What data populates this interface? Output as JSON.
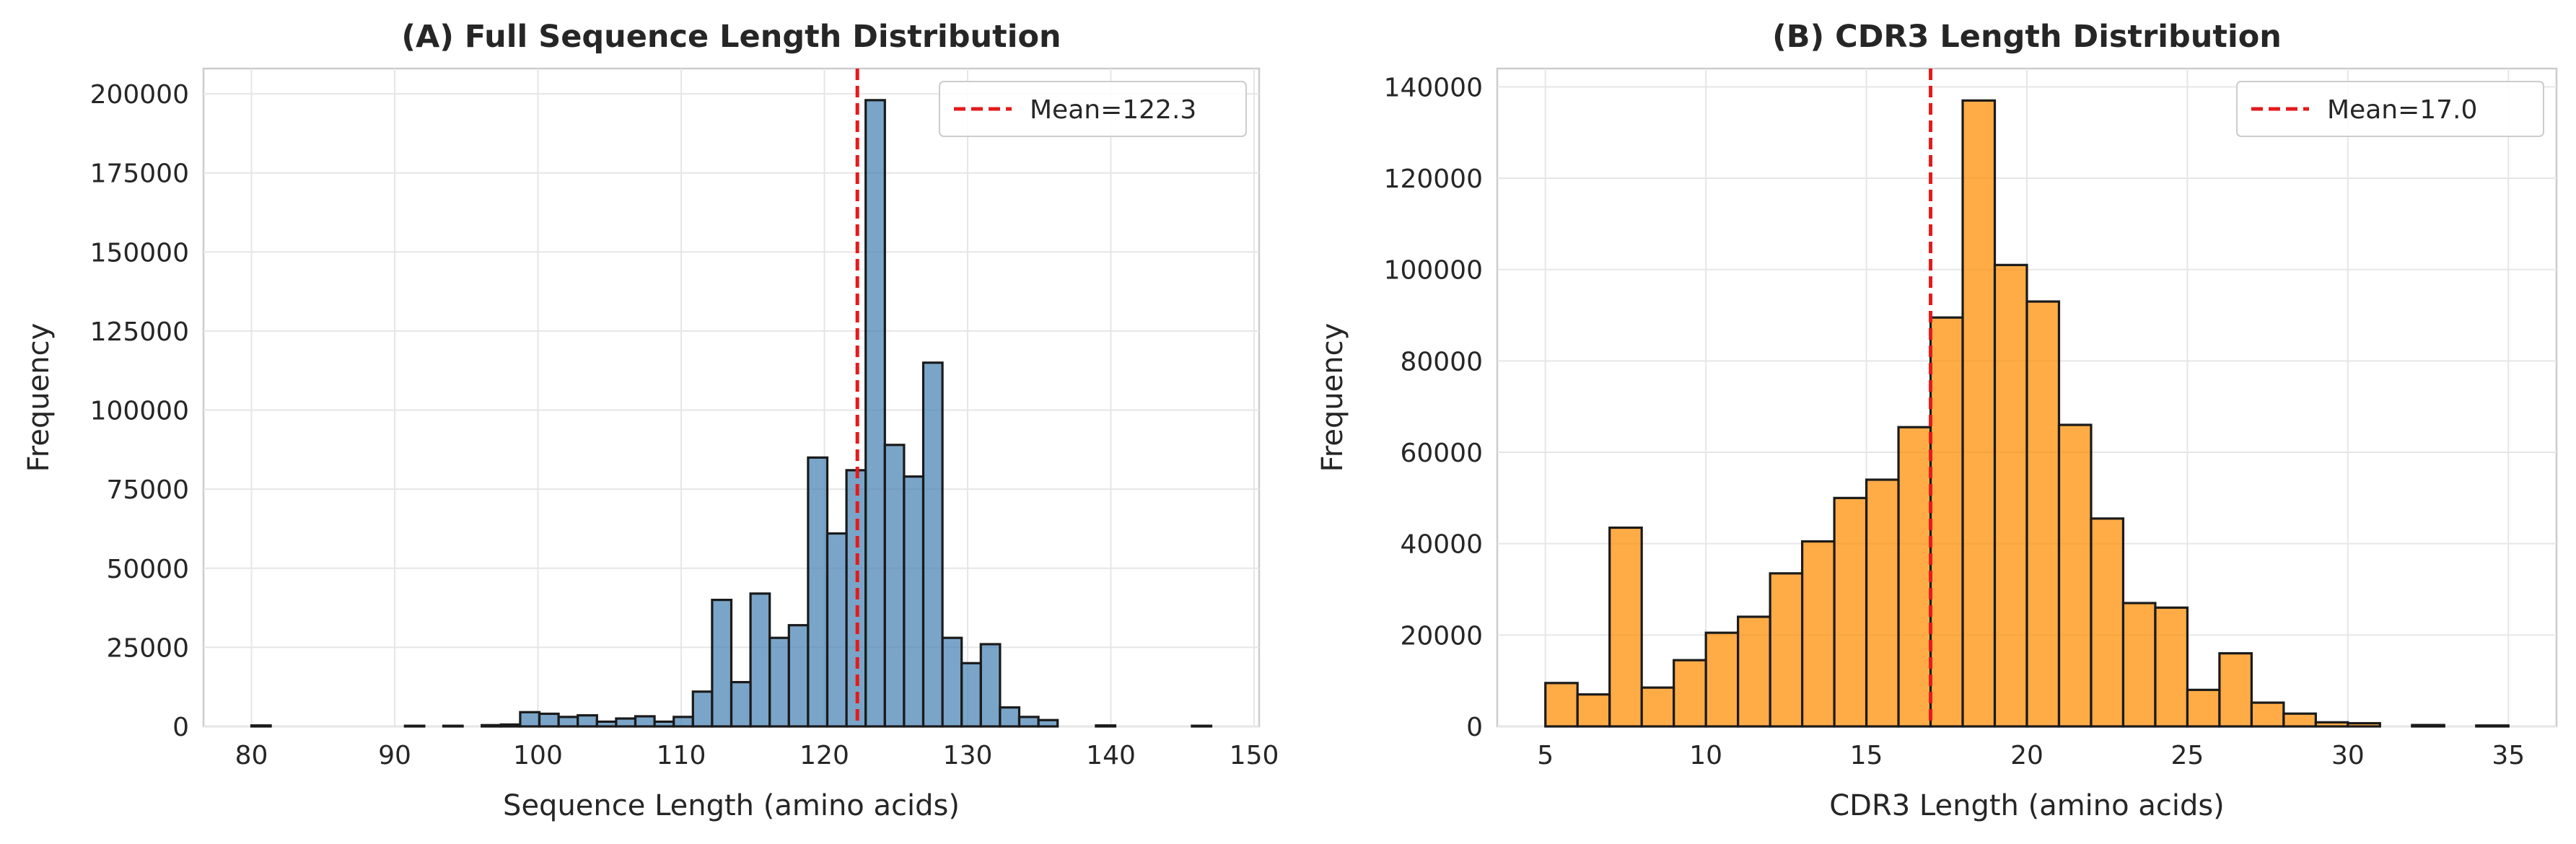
{
  "chart_data": [
    {
      "type": "bar",
      "title": "(A) Full Sequence Length Distribution",
      "xlabel": "Sequence Length (amino acids)",
      "ylabel": "Frequency",
      "xlim": [
        76.65,
        150.35
      ],
      "ylim": [
        0,
        208000
      ],
      "xticks": [
        80,
        90,
        100,
        110,
        120,
        130,
        140,
        150
      ],
      "yticks": [
        0,
        25000,
        50000,
        75000,
        100000,
        125000,
        150000,
        175000,
        200000
      ],
      "grid": true,
      "bar_color": "#4682B4",
      "bin_start": 80,
      "bin_width": 1.34,
      "values": [
        300,
        0,
        0,
        0,
        0,
        0,
        0,
        0,
        200,
        0,
        200,
        0,
        400,
        600,
        4500,
        4000,
        3000,
        3500,
        1500,
        2500,
        3200,
        1500,
        3000,
        11000,
        40000,
        14000,
        42000,
        28000,
        32000,
        85000,
        61000,
        81000,
        198000,
        89000,
        79000,
        115000,
        28000,
        20000,
        26000,
        6000,
        3000,
        2000,
        0,
        0,
        300,
        0,
        0,
        0,
        0,
        200
      ],
      "mean_line": {
        "value": 122.3,
        "label": "Mean=122.3",
        "color": "#E41A1C"
      },
      "legend_position": "upper right"
    },
    {
      "type": "bar",
      "title": "(B) CDR3 Length Distribution",
      "xlabel": "CDR3 Length (amino acids)",
      "ylabel": "Frequency",
      "xlim": [
        3.5,
        36.5
      ],
      "ylim": [
        0,
        144000
      ],
      "xticks": [
        5,
        10,
        15,
        20,
        25,
        30,
        35
      ],
      "yticks": [
        0,
        20000,
        40000,
        60000,
        80000,
        100000,
        120000,
        140000
      ],
      "grid": true,
      "bar_color": "#FF8C00",
      "bin_start": 5,
      "bin_width": 1,
      "values": [
        9500,
        7000,
        43500,
        8500,
        14500,
        20500,
        24000,
        33500,
        40500,
        50000,
        54000,
        65500,
        89500,
        137000,
        101000,
        93000,
        66000,
        45500,
        27000,
        26000,
        8000,
        16000,
        5200,
        2800,
        900,
        700,
        0,
        300,
        0,
        200
      ],
      "mean_line": {
        "value": 17.0,
        "label": "Mean=17.0",
        "color": "#E41A1C"
      },
      "legend_position": "upper right"
    }
  ]
}
